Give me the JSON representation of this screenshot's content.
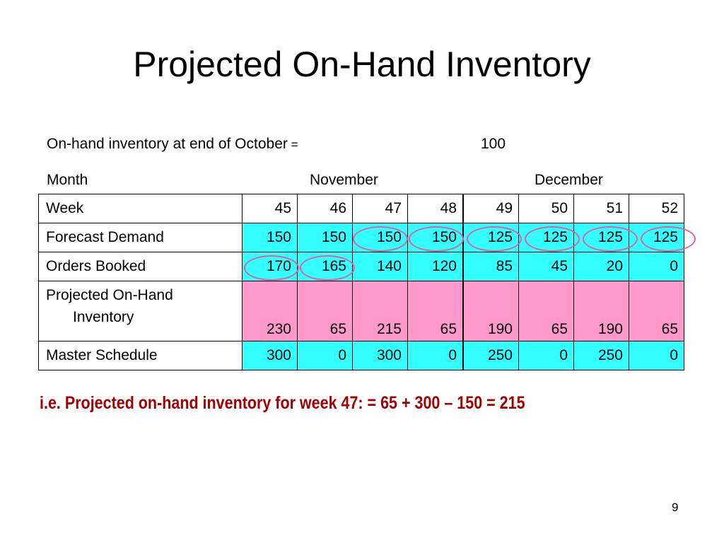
{
  "slide": {
    "title": "Projected On-Hand Inventory",
    "onhand_label": "On-hand inventory at end of October",
    "onhand_eq": " =",
    "onhand_value": "100",
    "month_label": "Month",
    "months": [
      "November",
      "December"
    ],
    "footnote": "i.e. Projected on-hand inventory for week 47: = 65 + 300 – 150 = 215",
    "page_number": "9"
  },
  "table": {
    "rows": [
      {
        "label": "Week",
        "values": [
          "45",
          "46",
          "47",
          "48",
          "49",
          "50",
          "51",
          "52"
        ]
      },
      {
        "label": "Forecast Demand",
        "values": [
          "150",
          "150",
          "150",
          "150",
          "125",
          "125",
          "125",
          "125"
        ]
      },
      {
        "label": "Orders Booked",
        "values": [
          "170",
          "165",
          "140",
          "120",
          "85",
          "45",
          "20",
          "0"
        ]
      },
      {
        "label_line1": "Projected On-Hand",
        "label_line2": "Inventory",
        "values": [
          "230",
          "65",
          "215",
          "65",
          "190",
          "65",
          "190",
          "65"
        ]
      },
      {
        "label": "Master Schedule",
        "values": [
          "300",
          "0",
          "300",
          "0",
          "250",
          "0",
          "250",
          "0"
        ]
      }
    ]
  },
  "colors": {
    "cyan_fill": "#33ffff",
    "pink_fill": "#ff99cc",
    "circle_stroke": "#e0609e",
    "footnote_text": "#a00000"
  }
}
